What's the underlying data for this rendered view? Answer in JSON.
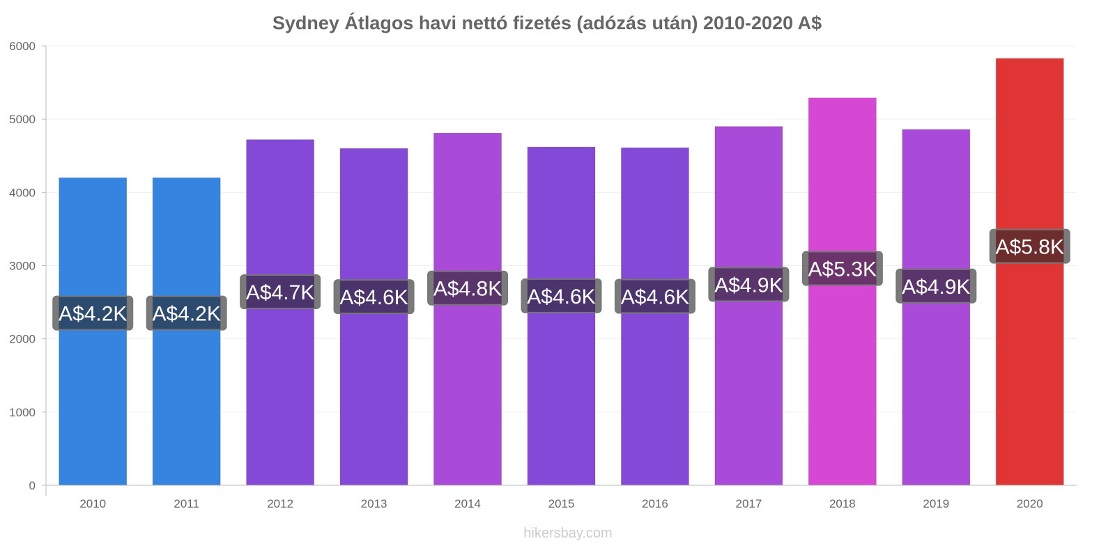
{
  "chart_data": {
    "type": "bar",
    "title": "Sydney Átlagos havi nettó fizetés (adózás után) 2010-2020 A$",
    "xlabel": "",
    "ylabel": "",
    "categories": [
      "2010",
      "2011",
      "2012",
      "2013",
      "2014",
      "2015",
      "2016",
      "2017",
      "2018",
      "2019",
      "2020"
    ],
    "values": [
      4200,
      4200,
      4720,
      4600,
      4810,
      4620,
      4610,
      4900,
      5290,
      4860,
      5830
    ],
    "data_labels": [
      "A$4.2K",
      "A$4.2K",
      "A$4.7K",
      "A$4.6K",
      "A$4.8K",
      "A$4.6K",
      "A$4.6K",
      "A$4.9K",
      "A$5.3K",
      "A$4.9K",
      "A$5.8K"
    ],
    "colors": [
      "#3584e0",
      "#3584e0",
      "#8549d8",
      "#8549d8",
      "#a94ad8",
      "#8549d8",
      "#8549d8",
      "#a94ad8",
      "#d648d4",
      "#a94ad8",
      "#e03535"
    ],
    "yticks": [
      0,
      1000,
      2000,
      3000,
      4000,
      5000,
      6000
    ],
    "ylim": [
      0,
      6000
    ],
    "grid": true,
    "legend": "none"
  },
  "source": "hikersbay.com"
}
